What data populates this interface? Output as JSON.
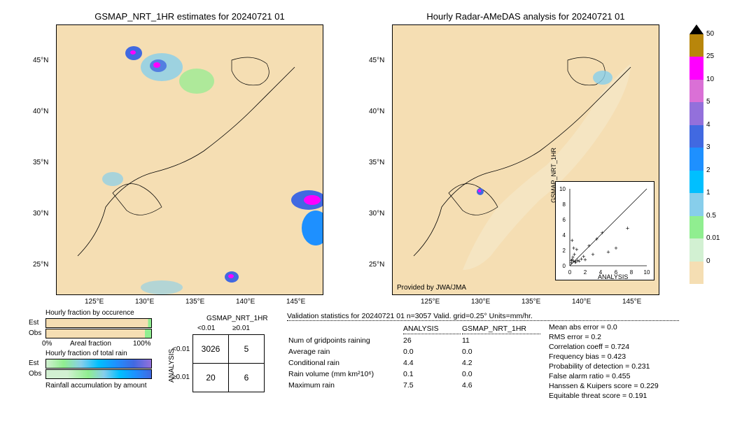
{
  "left_map": {
    "title": "GSMAP_NRT_1HR estimates for 20240721 01",
    "x_ticks": [
      "125°E",
      "130°E",
      "135°E",
      "140°E",
      "145°E"
    ],
    "y_ticks": [
      "25°N",
      "30°N",
      "35°N",
      "40°N",
      "45°N"
    ],
    "bg_color": "#f5deb3",
    "border_color": "#000000"
  },
  "right_map": {
    "title": "Hourly Radar-AMeDAS analysis for 20240721 01",
    "x_ticks": [
      "125°E",
      "130°E",
      "135°E",
      "140°E",
      "145°E"
    ],
    "y_ticks": [
      "25°N",
      "30°N",
      "35°N",
      "40°N",
      "45°N"
    ],
    "bg_color": "#f5deb3",
    "provided": "Provided by JWA/JMA"
  },
  "scatter": {
    "xlabel": "ANALYSIS",
    "ylabel": "GSMAP_NRT_1HR",
    "ticks": [
      "0",
      "2",
      "4",
      "6",
      "8",
      "10"
    ],
    "lim": [
      0,
      10
    ],
    "points": [
      [
        0.2,
        0.1
      ],
      [
        0.5,
        0.3
      ],
      [
        0.3,
        0.5
      ],
      [
        0.8,
        0.2
      ],
      [
        1.0,
        0.4
      ],
      [
        0.4,
        0.8
      ],
      [
        1.5,
        0.6
      ],
      [
        0.6,
        1.2
      ],
      [
        2.0,
        0.5
      ],
      [
        0.9,
        1.8
      ],
      [
        3.0,
        1.2
      ],
      [
        4.2,
        4.0
      ],
      [
        1.2,
        0.3
      ],
      [
        0.5,
        2.0
      ],
      [
        5.0,
        1.5
      ],
      [
        2.5,
        2.3
      ],
      [
        6.0,
        2.0
      ],
      [
        7.5,
        4.6
      ],
      [
        0.3,
        3.0
      ],
      [
        1.8,
        0.9
      ],
      [
        0.7,
        0.2
      ],
      [
        3.5,
        3.2
      ],
      [
        0.2,
        0.4
      ]
    ]
  },
  "colorbar": {
    "top_color": "#000000",
    "segments": [
      {
        "color": "#b8860b",
        "label": "50"
      },
      {
        "color": "#ff00ff",
        "label": "25"
      },
      {
        "color": "#da70d6",
        "label": "10"
      },
      {
        "color": "#9370db",
        "label": "5"
      },
      {
        "color": "#4169e1",
        "label": "4"
      },
      {
        "color": "#1e90ff",
        "label": "3"
      },
      {
        "color": "#00bfff",
        "label": "2"
      },
      {
        "color": "#87ceeb",
        "label": "1"
      },
      {
        "color": "#90ee90",
        "label": "0.5"
      },
      {
        "color": "#d2f0d2",
        "label": "0.01"
      },
      {
        "color": "#f5deb3",
        "label": "0"
      }
    ],
    "bottom_color": "#ffffff"
  },
  "occurrence": {
    "title": "Hourly fraction by occurence",
    "rows": [
      "Est",
      "Obs"
    ],
    "est_pct": 97,
    "obs_pct": 94,
    "fill_color": "#f5deb3",
    "edge_color": "#90ee90",
    "axis_left": "0%",
    "axis_right": "100%",
    "axis_label": "Areal fraction"
  },
  "total_rain": {
    "title": "Hourly fraction of total rain",
    "rows": [
      "Est",
      "Obs"
    ],
    "footer": "Rainfall accumulation by amount",
    "gradient": [
      "#d2f0d2",
      "#90ee90",
      "#87ceeb",
      "#00bfff",
      "#1e90ff",
      "#4169e1",
      "#9370db"
    ]
  },
  "contingency": {
    "col_header": "GSMAP_NRT_1HR",
    "row_header": "ANALYSIS",
    "col_labels": [
      "<0.01",
      "≥0.01"
    ],
    "row_labels": [
      "<0.01",
      "≥0.01"
    ],
    "cells": [
      [
        3026,
        5
      ],
      [
        20,
        6
      ]
    ]
  },
  "validation": {
    "title": "Validation statistics for 20240721 01  n=3057 Valid. grid=0.25°  Units=mm/hr.",
    "col_headers": [
      "",
      "ANALYSIS",
      "GSMAP_NRT_1HR"
    ],
    "rows": [
      {
        "label": "Num of gridpoints raining",
        "a": "26",
        "b": "11"
      },
      {
        "label": "Average rain",
        "a": "0.0",
        "b": "0.0"
      },
      {
        "label": "Conditional rain",
        "a": "4.4",
        "b": "4.2"
      },
      {
        "label": "Rain volume (mm km²10⁶)",
        "a": "0.1",
        "b": "0.0"
      },
      {
        "label": "Maximum rain",
        "a": "7.5",
        "b": "4.6"
      }
    ],
    "stats": [
      {
        "label": "Mean abs error =",
        "v": "0.0"
      },
      {
        "label": "RMS error =",
        "v": "0.2"
      },
      {
        "label": "Correlation coeff =",
        "v": "0.724"
      },
      {
        "label": "Frequency bias =",
        "v": "0.423"
      },
      {
        "label": "Probability of detection =",
        "v": "0.231"
      },
      {
        "label": "False alarm ratio =",
        "v": "0.455"
      },
      {
        "label": "Hanssen & Kuipers score =",
        "v": "0.229"
      },
      {
        "label": "Equitable threat score =",
        "v": "0.191"
      }
    ]
  }
}
